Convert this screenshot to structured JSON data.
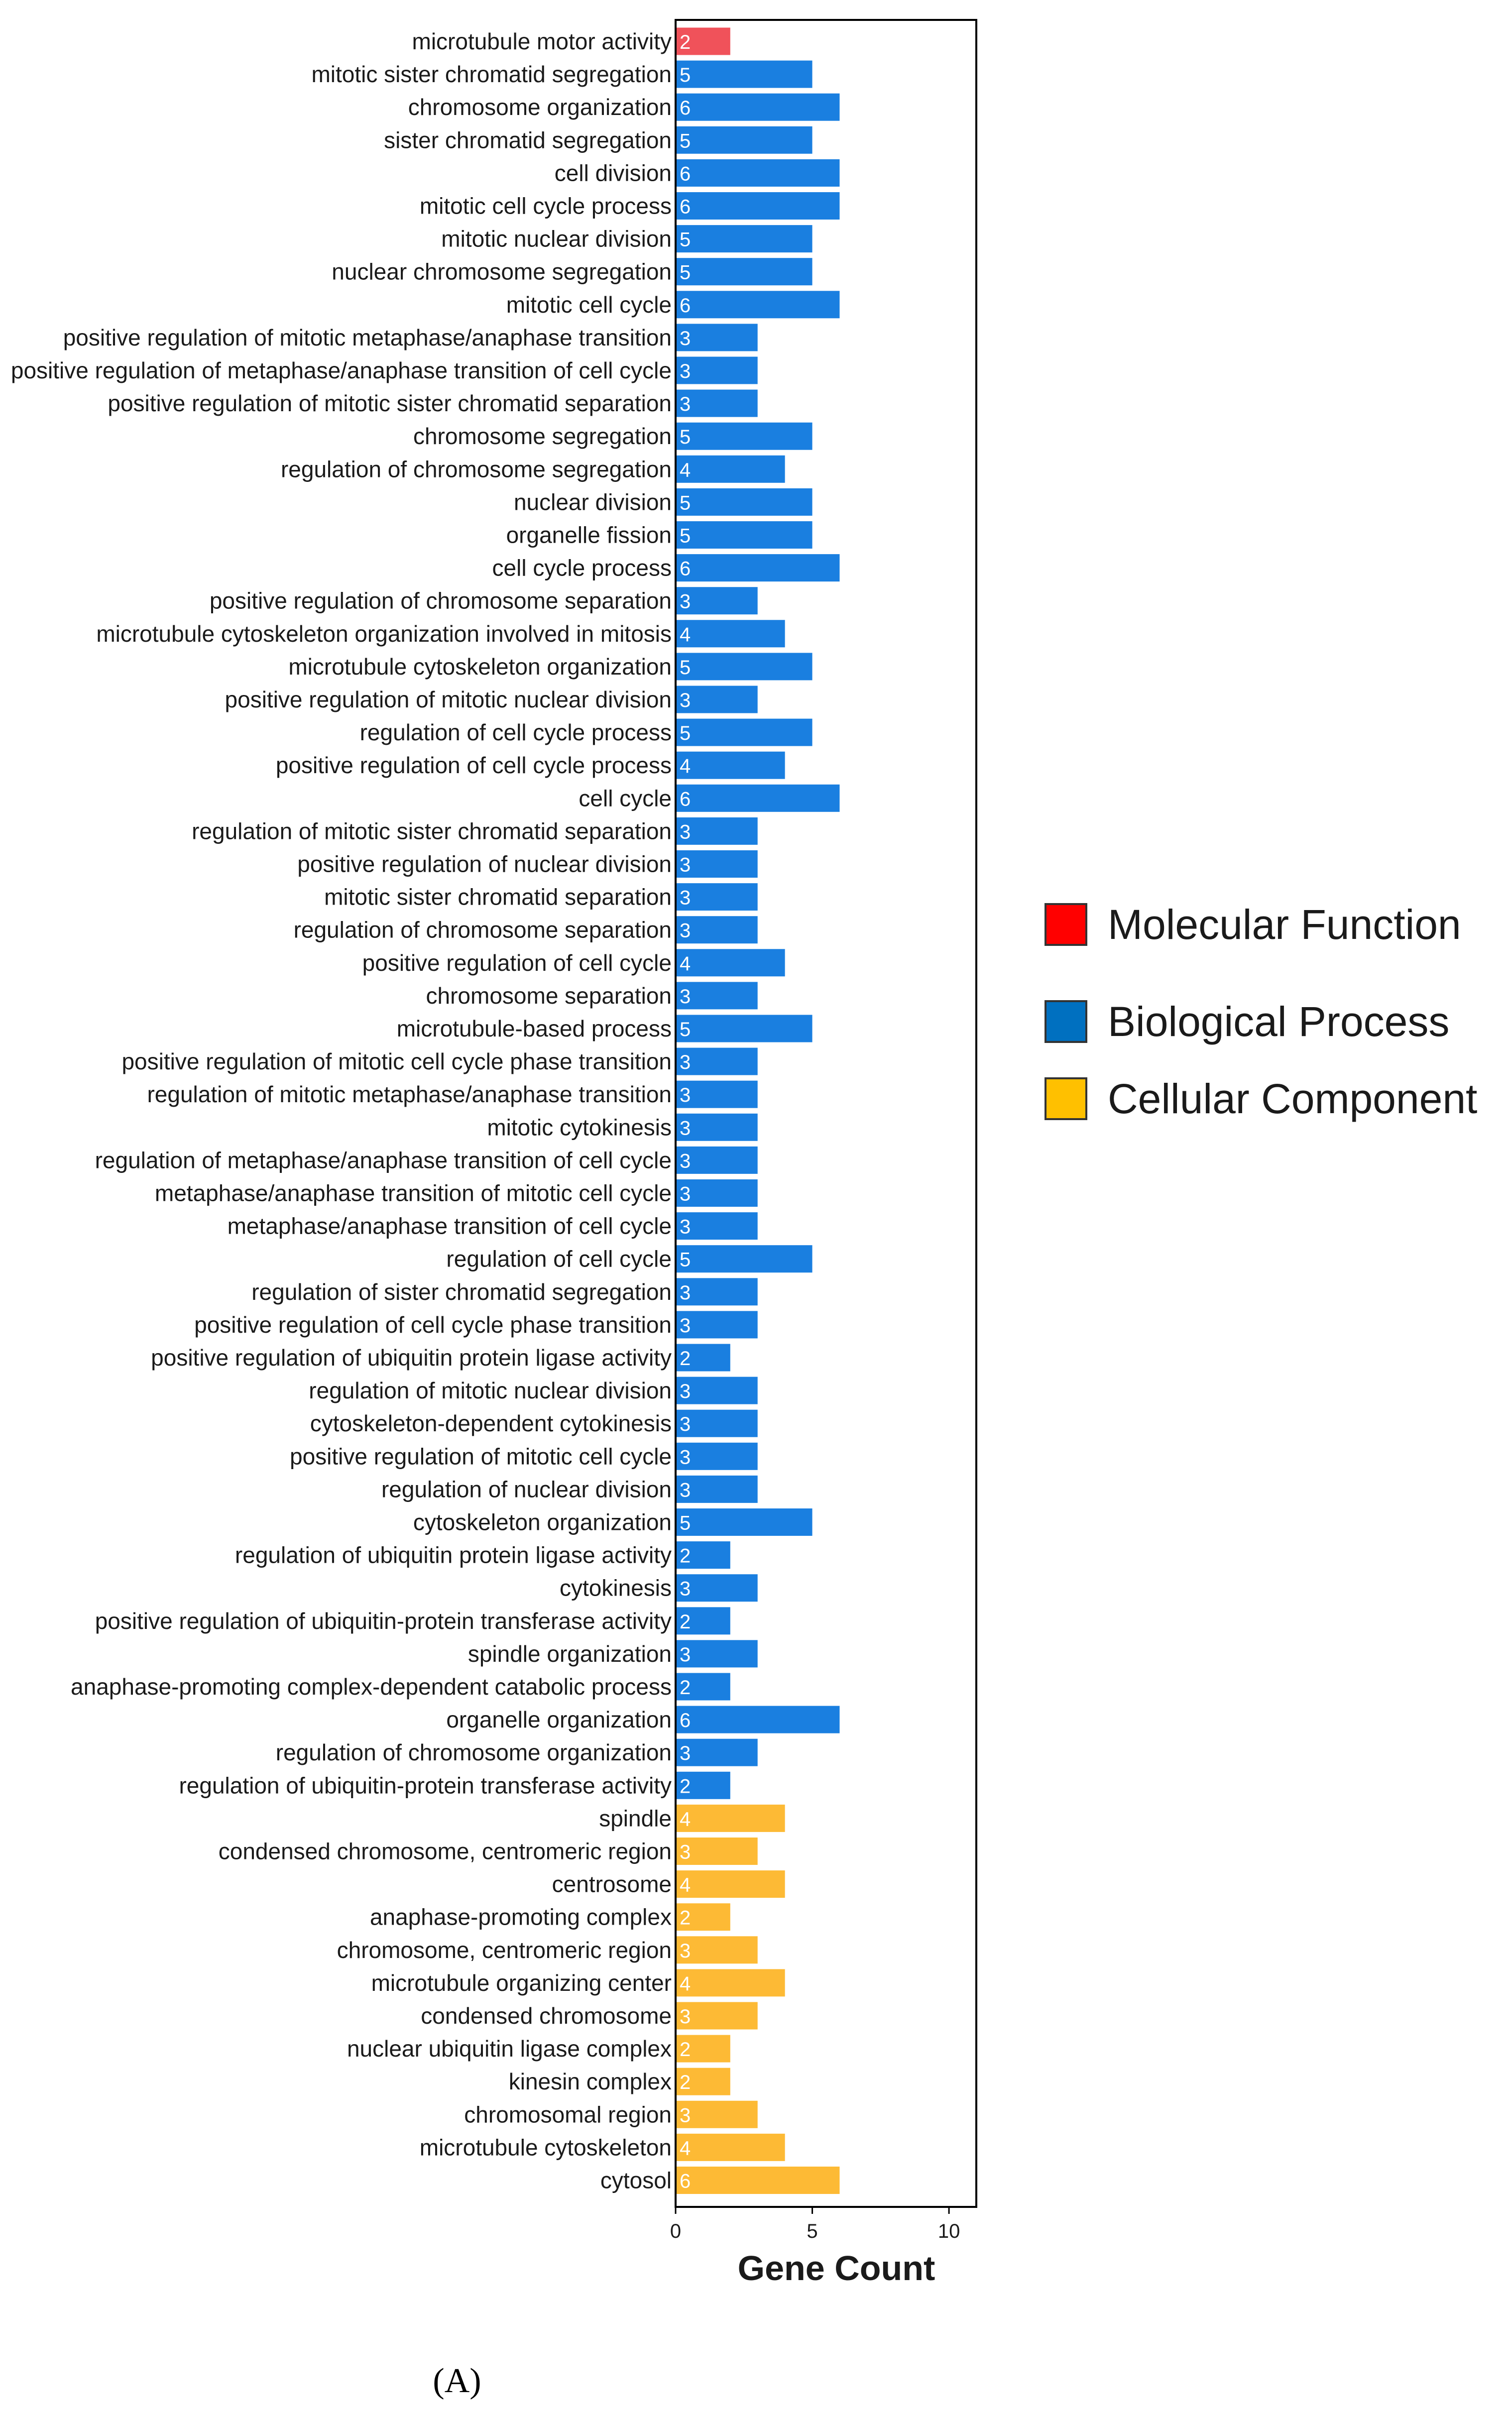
{
  "chart_data": {
    "type": "bar",
    "orientation": "horizontal",
    "xlabel": "Gene Count",
    "xlim": [
      0,
      11
    ],
    "xticks": [
      0,
      5,
      10
    ],
    "panel_label": "(A)",
    "legend": [
      {
        "name": "Molecular Function",
        "color": "#ff0000"
      },
      {
        "name": "Biological Process",
        "color": "#0070c0"
      },
      {
        "name": "Cellular Component",
        "color": "#ffc000"
      }
    ],
    "series_colors": {
      "Molecular Function": "#f0525a",
      "Biological Process": "#1a7fe0",
      "Cellular Component": "#fdba35"
    },
    "categories": [
      "microtubule motor activity",
      "mitotic sister chromatid segregation",
      "chromosome organization",
      "sister chromatid segregation",
      "cell division",
      "mitotic cell cycle process",
      "mitotic nuclear division",
      "nuclear chromosome segregation",
      "mitotic cell cycle",
      "positive regulation of mitotic metaphase/anaphase transition",
      "positive regulation of metaphase/anaphase transition of cell cycle",
      "positive regulation of mitotic sister chromatid separation",
      "chromosome segregation",
      "regulation of chromosome segregation",
      "nuclear division",
      "organelle fission",
      "cell cycle process",
      "positive regulation of chromosome separation",
      "microtubule cytoskeleton organization involved in mitosis",
      "microtubule cytoskeleton organization",
      "positive regulation of mitotic nuclear division",
      "regulation of cell cycle process",
      "positive regulation of cell cycle process",
      "cell cycle",
      "regulation of mitotic sister chromatid separation",
      "positive regulation of nuclear division",
      "mitotic sister chromatid separation",
      "regulation of chromosome separation",
      "positive regulation of cell cycle",
      "chromosome separation",
      "microtubule-based process",
      "positive regulation of mitotic cell cycle phase transition",
      "regulation of mitotic metaphase/anaphase transition",
      "mitotic cytokinesis",
      "regulation of metaphase/anaphase transition of cell cycle",
      "metaphase/anaphase transition of mitotic cell cycle",
      "metaphase/anaphase transition of cell cycle",
      "regulation of cell cycle",
      "regulation of sister chromatid segregation",
      "positive regulation of cell cycle phase transition",
      "positive regulation of ubiquitin protein ligase activity",
      "regulation of mitotic nuclear division",
      "cytoskeleton-dependent cytokinesis",
      "positive regulation of mitotic cell cycle",
      "regulation of nuclear division",
      "cytoskeleton organization",
      "regulation of ubiquitin protein ligase activity",
      "cytokinesis",
      "positive regulation of ubiquitin-protein transferase activity",
      "spindle organization",
      "anaphase-promoting complex-dependent catabolic process",
      "organelle organization",
      "regulation of chromosome organization",
      "regulation of ubiquitin-protein transferase activity",
      "spindle",
      "condensed chromosome, centromeric region",
      "centrosome",
      "anaphase-promoting complex",
      "chromosome, centromeric region",
      "microtubule organizing center",
      "condensed chromosome",
      "nuclear ubiquitin ligase complex",
      "kinesin complex",
      "chromosomal region",
      "microtubule cytoskeleton",
      "cytosol"
    ],
    "values": [
      2,
      5,
      6,
      5,
      6,
      6,
      5,
      5,
      6,
      3,
      3,
      3,
      5,
      4,
      5,
      5,
      6,
      3,
      4,
      5,
      3,
      5,
      4,
      6,
      3,
      3,
      3,
      3,
      4,
      3,
      5,
      3,
      3,
      3,
      3,
      3,
      3,
      5,
      3,
      3,
      2,
      3,
      3,
      3,
      3,
      5,
      2,
      3,
      2,
      3,
      2,
      6,
      3,
      2,
      4,
      3,
      4,
      2,
      3,
      4,
      3,
      2,
      2,
      3,
      4,
      6
    ],
    "groups": [
      "Molecular Function",
      "Biological Process",
      "Biological Process",
      "Biological Process",
      "Biological Process",
      "Biological Process",
      "Biological Process",
      "Biological Process",
      "Biological Process",
      "Biological Process",
      "Biological Process",
      "Biological Process",
      "Biological Process",
      "Biological Process",
      "Biological Process",
      "Biological Process",
      "Biological Process",
      "Biological Process",
      "Biological Process",
      "Biological Process",
      "Biological Process",
      "Biological Process",
      "Biological Process",
      "Biological Process",
      "Biological Process",
      "Biological Process",
      "Biological Process",
      "Biological Process",
      "Biological Process",
      "Biological Process",
      "Biological Process",
      "Biological Process",
      "Biological Process",
      "Biological Process",
      "Biological Process",
      "Biological Process",
      "Biological Process",
      "Biological Process",
      "Biological Process",
      "Biological Process",
      "Biological Process",
      "Biological Process",
      "Biological Process",
      "Biological Process",
      "Biological Process",
      "Biological Process",
      "Biological Process",
      "Biological Process",
      "Biological Process",
      "Biological Process",
      "Biological Process",
      "Biological Process",
      "Biological Process",
      "Biological Process",
      "Cellular Component",
      "Cellular Component",
      "Cellular Component",
      "Cellular Component",
      "Cellular Component",
      "Cellular Component",
      "Cellular Component",
      "Cellular Component",
      "Cellular Component",
      "Cellular Component",
      "Cellular Component",
      "Cellular Component"
    ]
  }
}
